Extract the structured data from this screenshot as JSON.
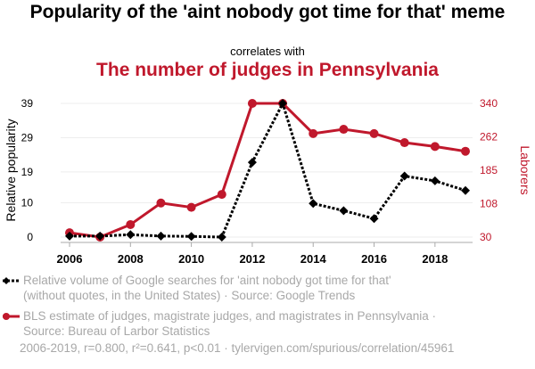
{
  "chart_data": {
    "type": "line",
    "title": "Popularity of the 'aint nobody got time for that' meme",
    "correlates_label": "correlates with",
    "subtitle": "The number of judges in Pennsylvania",
    "x": [
      2006,
      2007,
      2008,
      2009,
      2010,
      2011,
      2012,
      2013,
      2014,
      2015,
      2016,
      2017,
      2018,
      2019
    ],
    "xticks": [
      "2006",
      "2008",
      "2010",
      "2012",
      "2014",
      "2016",
      "2018"
    ],
    "ylabel": "Relative popularity",
    "y2label": "Laborers",
    "ylim": [
      0,
      39
    ],
    "y2lim": [
      30,
      340
    ],
    "yticks": [
      "0",
      "10",
      "19",
      "29",
      "39"
    ],
    "y2ticks": [
      "30",
      "108",
      "185",
      "262",
      "340"
    ],
    "series": [
      {
        "name": "Relative volume of Google searches for 'aint nobody got time for that' (without quotes, in the United States) · Source: Google Trends",
        "axis": "left",
        "color": "#000000",
        "values": [
          0.3,
          0.3,
          0.7,
          0.3,
          0.2,
          0,
          21.8,
          39,
          9.8,
          7.7,
          5.4,
          17.8,
          16.4,
          13.6
        ]
      },
      {
        "name": "BLS estimate of judges, magistrate judges, and magistrates in Pennsylvania · Source: Bureau of Larbor Statistics",
        "axis": "right",
        "color": "#c0182c",
        "values": [
          40,
          30,
          59,
          109,
          99,
          129,
          340,
          340,
          270,
          280,
          270,
          249,
          240,
          229
        ]
      }
    ],
    "legend": [
      {
        "line1": "Relative volume of Google searches for 'aint nobody got time for that'",
        "line2": "(without quotes, in the United States) · Source: Google Trends"
      },
      {
        "line1": "BLS estimate of judges, magistrate judges, and magistrates in Pennsylvania ·",
        "line2": "Source: Bureau of Larbor Statistics"
      }
    ],
    "footer": "2006-2019, r=0.800, r²=0.641, p<0.01 · tylervigen.com/spurious/correlation/45961"
  }
}
